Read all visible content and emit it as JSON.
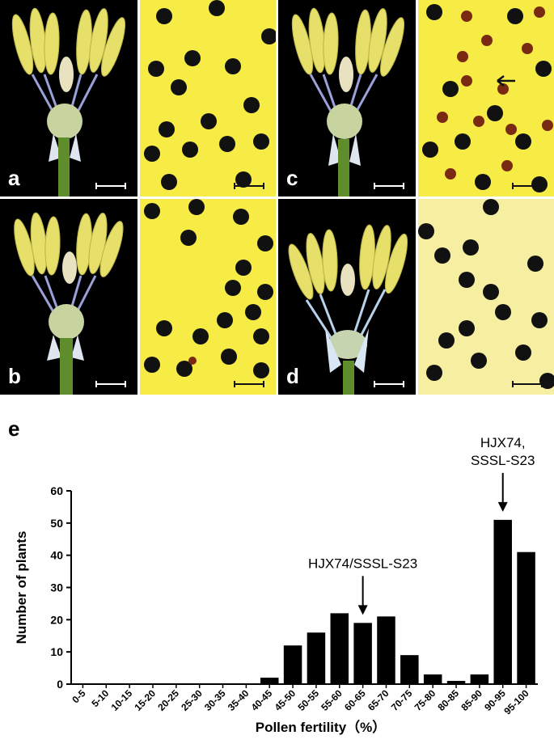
{
  "panels": [
    {
      "label": "a"
    },
    {
      "label": "b"
    },
    {
      "label": "c"
    },
    {
      "label": "d"
    }
  ],
  "panel_e_label": "e",
  "chart_data": {
    "type": "bar",
    "categories": [
      "0-5",
      "5-10",
      "10-15",
      "15-20",
      "20-25",
      "25-30",
      "30-35",
      "35-40",
      "40-45",
      "45-50",
      "50-55",
      "55-60",
      "60-65",
      "65-70",
      "70-75",
      "75-80",
      "80-85",
      "85-90",
      "90-95",
      "95-100"
    ],
    "values": [
      0,
      0,
      0,
      0,
      0,
      0,
      0,
      0,
      2,
      12,
      16,
      22,
      19,
      21,
      9,
      3,
      1,
      3,
      51,
      41
    ],
    "xlabel": "Pollen fertility（%）",
    "ylabel": "Number of plants",
    "ylim": [
      0,
      60
    ],
    "yticks": [
      0,
      10,
      20,
      30,
      40,
      50,
      60
    ],
    "bar_color": "#000000",
    "annotations": [
      {
        "lines": [
          "HJX74/SSSL-S23"
        ],
        "category_index": 12
      },
      {
        "lines": [
          "HJX74,",
          "SSSL-S23"
        ],
        "category_index": 18
      }
    ]
  }
}
